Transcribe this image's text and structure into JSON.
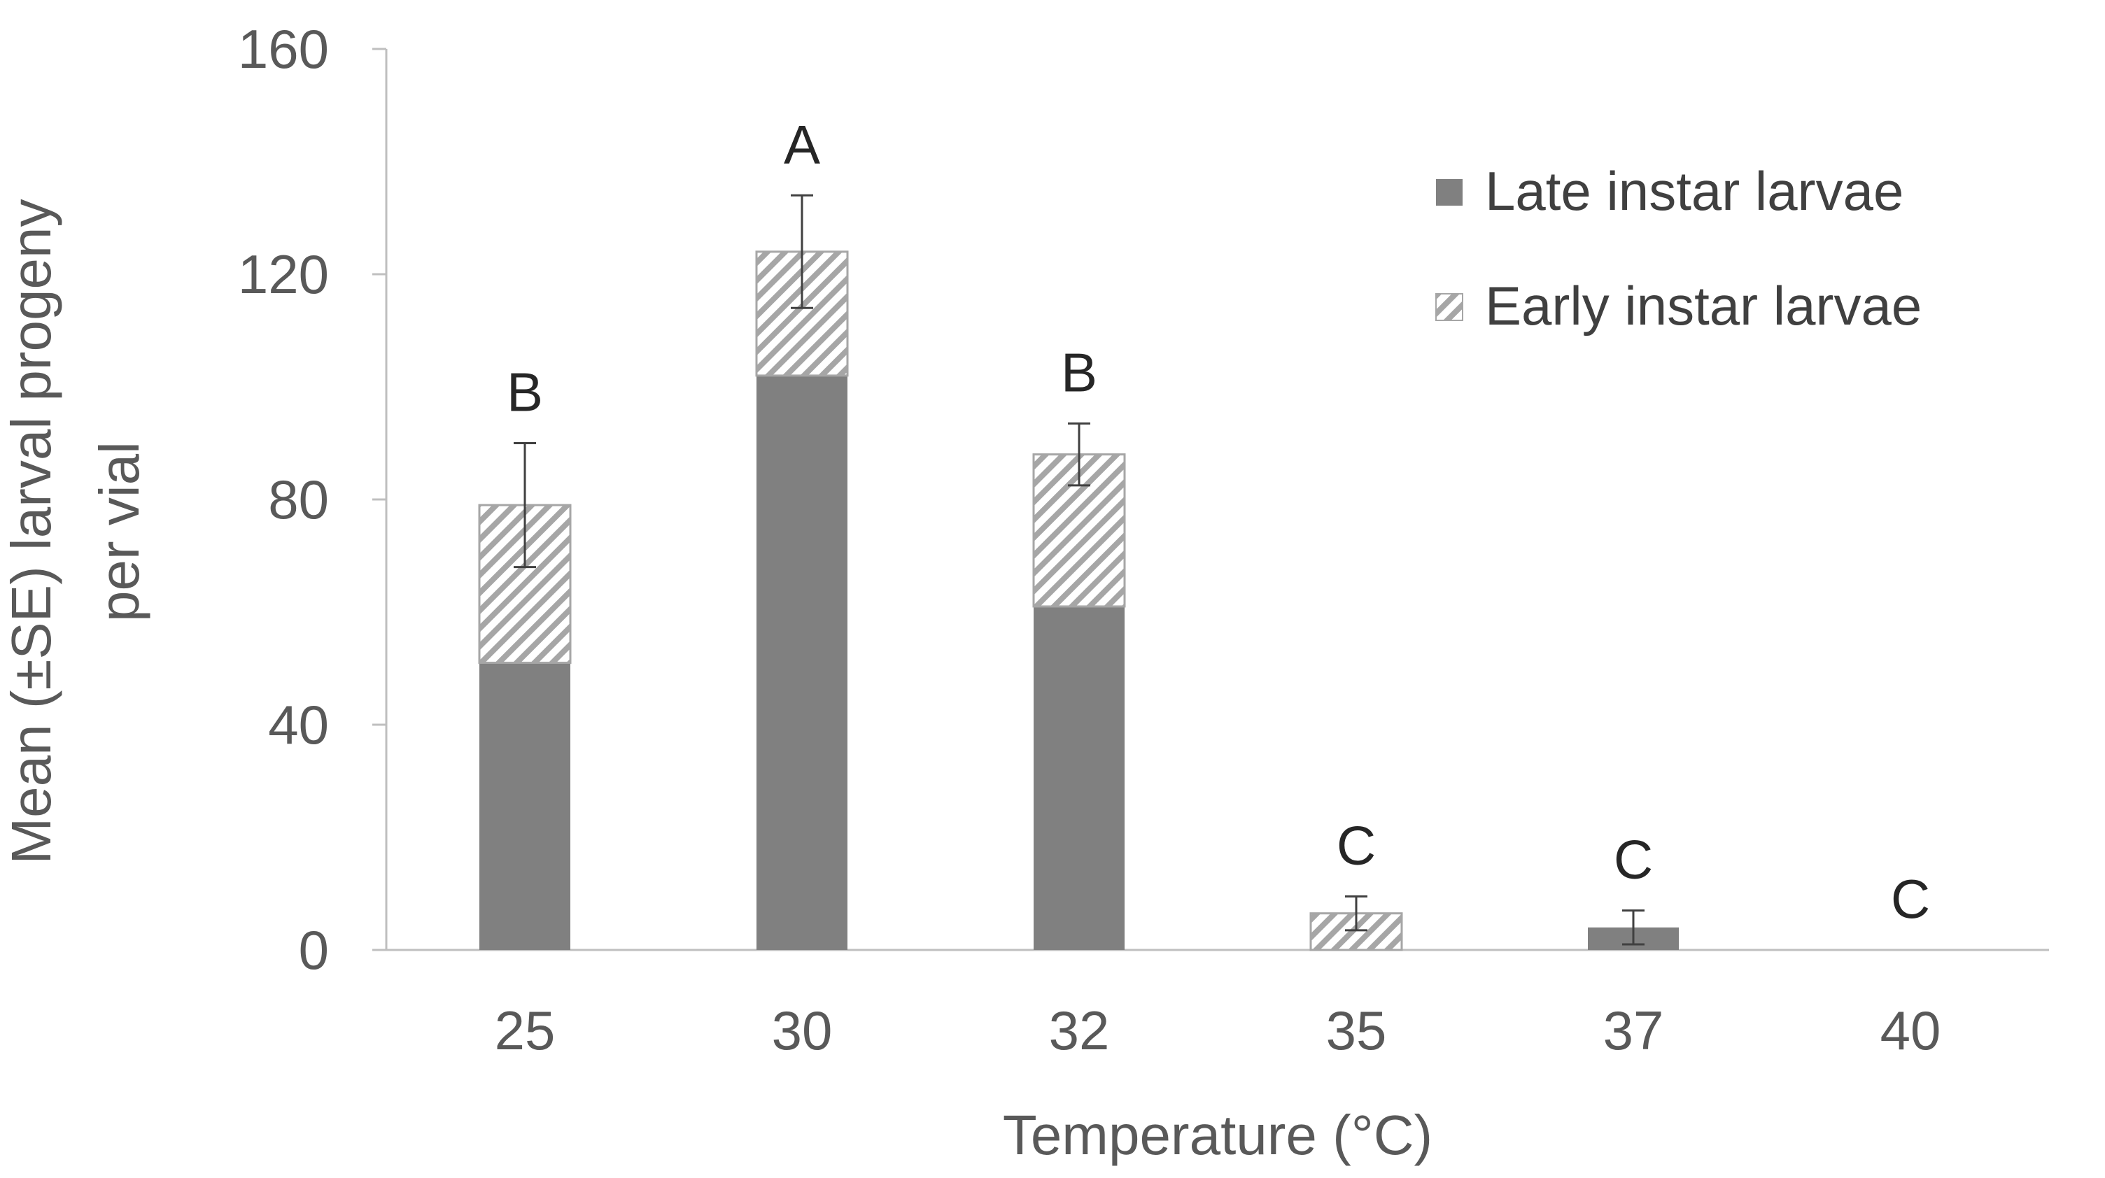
{
  "chart_data": {
    "type": "bar",
    "stacked": true,
    "title": "",
    "xlabel": "Temperature (°C)",
    "ylabel_lines": [
      "Mean (±SE) larval progeny",
      "per vial"
    ],
    "categories": [
      "25",
      "30",
      "32",
      "35",
      "37",
      "40"
    ],
    "series": [
      {
        "name": "Late instar larvae",
        "values": [
          51,
          102,
          61,
          0,
          4,
          0
        ],
        "color": "#808080",
        "pattern": "solid"
      },
      {
        "name": "Early instar larvae",
        "values": [
          28,
          22,
          27,
          6.5,
          0,
          0
        ],
        "color": "#a6a6a6",
        "pattern": "diagonal-hatch"
      }
    ],
    "error_se": [
      11,
      10,
      5.5,
      3,
      3,
      0
    ],
    "significance_letters": [
      "B",
      "A",
      "B",
      "C",
      "C",
      "C"
    ],
    "ylim": [
      0,
      160
    ],
    "yticks": [
      0,
      40,
      80,
      120,
      160
    ],
    "grid": false,
    "legend_position": "top-right"
  }
}
